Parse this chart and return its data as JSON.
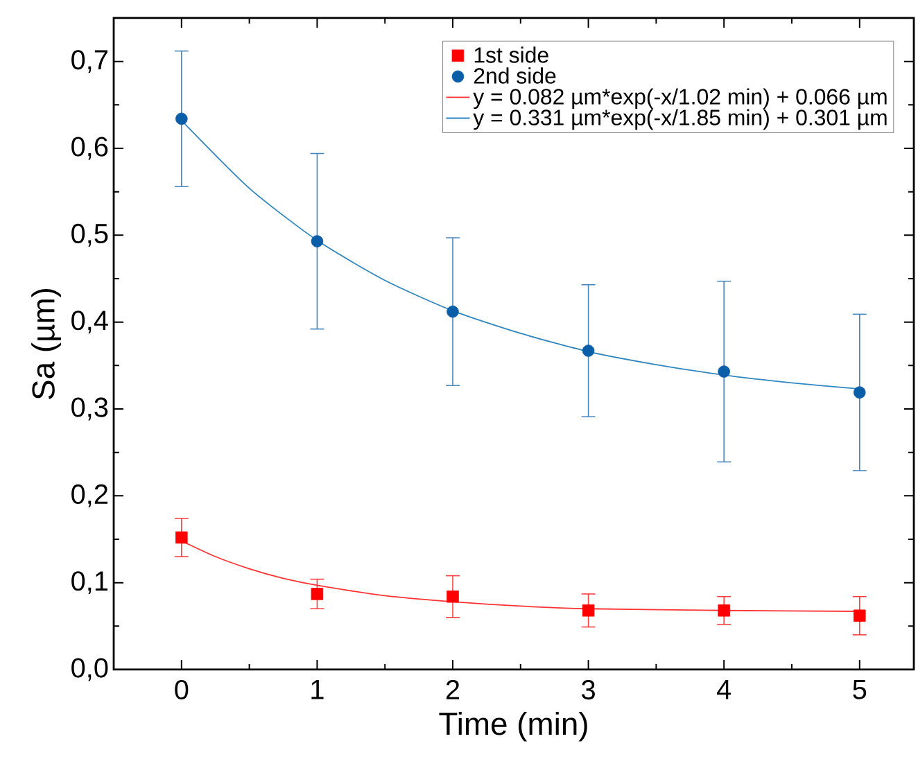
{
  "chart_data": {
    "type": "scatter",
    "xlabel": "Time (min)",
    "ylabel": "Sa (µm)",
    "xlim": [
      -0.5,
      5.4
    ],
    "ylim": [
      0,
      0.75
    ],
    "xticks": [
      0,
      1,
      2,
      3,
      4,
      5
    ],
    "yticks": [
      {
        "value": 0,
        "label": "0,0"
      },
      {
        "value": 0.1,
        "label": "0,1"
      },
      {
        "value": 0.2,
        "label": "0,2"
      },
      {
        "value": 0.3,
        "label": "0,3"
      },
      {
        "value": 0.4,
        "label": "0,4"
      },
      {
        "value": 0.5,
        "label": "0,5"
      },
      {
        "value": 0.6,
        "label": "0,6"
      },
      {
        "value": 0.7,
        "label": "0,7"
      }
    ],
    "legend": "top right",
    "grid": false,
    "series": [
      {
        "name": "1st side",
        "marker": "square",
        "color": "#ff0000",
        "x": [
          0,
          1,
          2,
          3,
          4,
          5
        ],
        "values": [
          0.152,
          0.087,
          0.084,
          0.068,
          0.068,
          0.062
        ],
        "errors": [
          0.022,
          0.017,
          0.024,
          0.019,
          0.016,
          0.022
        ]
      },
      {
        "name": "2nd side",
        "marker": "circle",
        "color": "#0a5ea8",
        "x": [
          0,
          1,
          2,
          3,
          4,
          5
        ],
        "values": [
          0.634,
          0.493,
          0.412,
          0.367,
          0.343,
          0.319
        ],
        "errors": [
          0.078,
          0.101,
          0.085,
          0.076,
          0.104,
          0.09
        ]
      },
      {
        "name": "y = 0.082 µm*exp(-x/1.02 min) + 0.066 µm",
        "type": "line",
        "marker": "none",
        "line_style": "solid",
        "color": "#ff3333",
        "x": [
          0,
          0.25,
          0.5,
          0.75,
          1,
          1.5,
          2,
          2.5,
          3,
          4,
          5
        ],
        "values": [
          0.148,
          0.13,
          0.116,
          0.105,
          0.097,
          0.085,
          0.078,
          0.073,
          0.07,
          0.068,
          0.067
        ]
      },
      {
        "name": "y = 0.331 µm*exp(-x/1.85 min) + 0.301 µm",
        "type": "line",
        "marker": "none",
        "line_style": "solid",
        "color": "#2f86c0",
        "x": [
          0,
          0.5,
          1,
          1.5,
          2,
          2.5,
          3,
          3.5,
          4,
          4.5,
          5
        ],
        "values": [
          0.632,
          0.554,
          0.494,
          0.448,
          0.413,
          0.387,
          0.366,
          0.351,
          0.339,
          0.33,
          0.323
        ]
      }
    ]
  }
}
